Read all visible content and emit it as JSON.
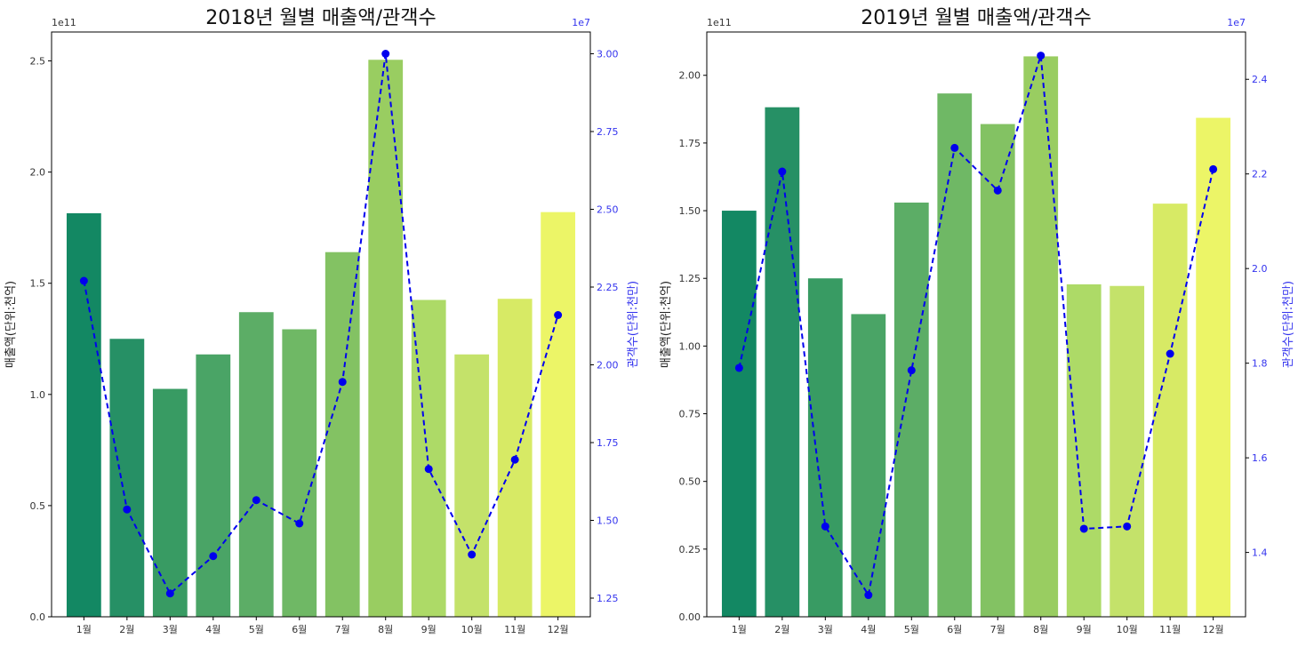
{
  "chart_data": [
    {
      "type": "bar",
      "title": "2018년 월별 매출액/관객수",
      "categories": [
        "1월",
        "2월",
        "3월",
        "4월",
        "5월",
        "6월",
        "7월",
        "8월",
        "9월",
        "10월",
        "11월",
        "12월"
      ],
      "ylabel": "매출액(단위:천억)",
      "ylim": [
        0,
        2.63
      ],
      "y_ticks": [
        "0.0",
        "0.5",
        "1.0",
        "1.5",
        "2.0",
        "2.5"
      ],
      "y_exponent": "1e11",
      "values": [
        1.815,
        1.25,
        1.025,
        1.18,
        1.37,
        1.293,
        1.64,
        2.505,
        1.425,
        1.18,
        1.43,
        1.82
      ],
      "y2label": "관객수(단위:천만)",
      "y2lim": [
        1.19,
        3.07
      ],
      "y2_ticks": [
        "1.25",
        "1.50",
        "1.75",
        "2.00",
        "2.25",
        "2.50",
        "2.75",
        "3.00"
      ],
      "y2_exponent": "1e7",
      "line_values": [
        2.27,
        1.535,
        1.265,
        1.385,
        1.565,
        1.49,
        1.945,
        3.0,
        1.665,
        1.39,
        1.695,
        2.16
      ],
      "bar_colors": [
        "#138863",
        "#269065",
        "#389b63",
        "#4aa466",
        "#5cad66",
        "#6fb865",
        "#83c263",
        "#99cd61",
        "#adda67",
        "#c4e26a",
        "#d7ea65",
        "#ecf567"
      ],
      "line_color": "#0000ee",
      "grid": false
    },
    {
      "type": "bar",
      "title": "2019년 월별 매출액/관객수",
      "categories": [
        "1월",
        "2월",
        "3월",
        "4월",
        "5월",
        "6월",
        "7월",
        "8월",
        "9월",
        "10월",
        "11월",
        "12월"
      ],
      "ylabel": "매출액(단위:천억)",
      "ylim": [
        0,
        2.16
      ],
      "y_ticks": [
        "0.00",
        "0.25",
        "0.50",
        "0.75",
        "1.00",
        "1.25",
        "1.50",
        "1.75",
        "2.00"
      ],
      "y_exponent": "1e11",
      "values": [
        1.5,
        1.882,
        1.25,
        1.118,
        1.53,
        1.933,
        1.82,
        2.07,
        1.228,
        1.222,
        1.526,
        1.843
      ],
      "y2label": "관객수(단위:천만)",
      "y2lim": [
        1.264,
        2.5
      ],
      "y2_ticks": [
        "1.4",
        "1.6",
        "1.8",
        "2.0",
        "2.2",
        "2.4"
      ],
      "y2_exponent": "1e7",
      "line_values": [
        1.79,
        2.205,
        1.455,
        1.31,
        1.785,
        2.255,
        2.165,
        2.45,
        1.45,
        1.455,
        1.82,
        2.21
      ],
      "bar_colors": [
        "#138863",
        "#269065",
        "#389b63",
        "#4aa466",
        "#5cad66",
        "#6fb865",
        "#83c263",
        "#99cd61",
        "#adda67",
        "#c4e26a",
        "#d7ea65",
        "#ecf567"
      ],
      "line_color": "#0000ee",
      "grid": false
    }
  ]
}
